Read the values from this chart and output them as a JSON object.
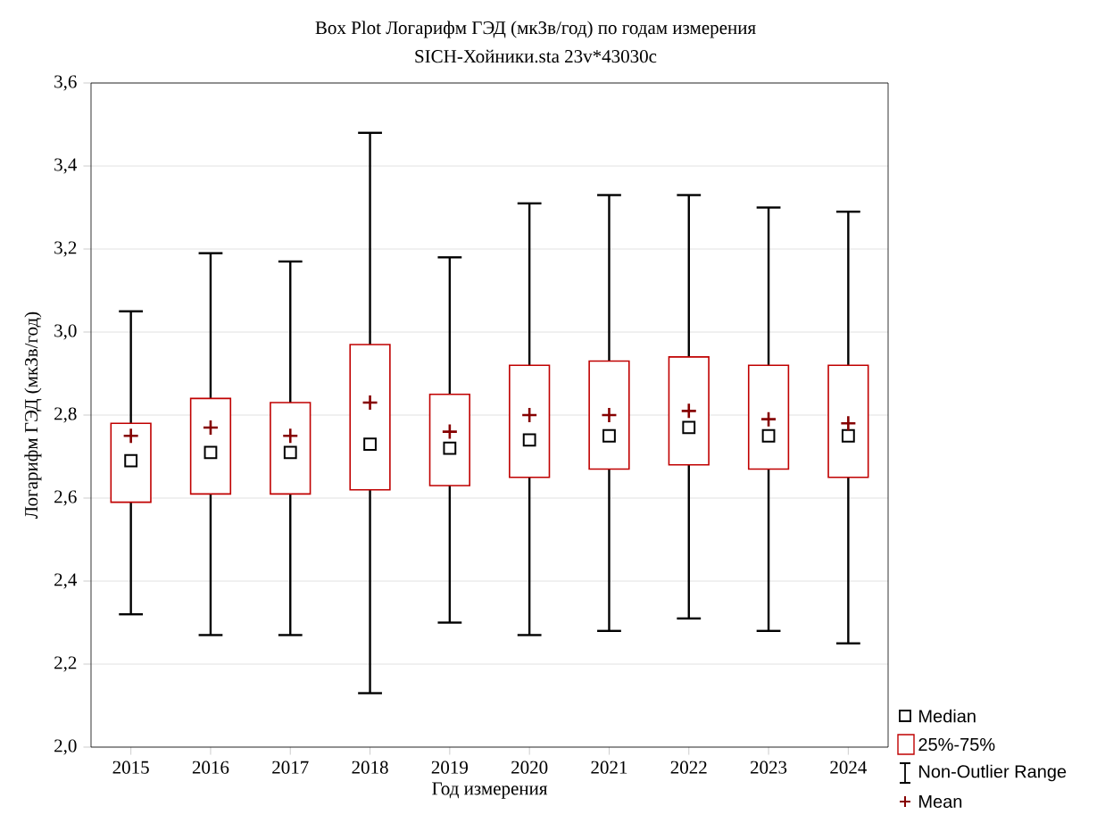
{
  "chart_data": {
    "type": "box",
    "title": "Box Plot Логарифм ГЭД (мкЗв/год) по годам измерения",
    "subtitle": "SICH-Хойники.sta 23v*43030c",
    "xlabel": "Год измерения",
    "ylabel": "Логарифм ГЭД (мкЗв/год)",
    "categories": [
      "2015",
      "2016",
      "2017",
      "2018",
      "2019",
      "2020",
      "2021",
      "2022",
      "2023",
      "2024"
    ],
    "boxes": [
      {
        "low": 2.32,
        "q1": 2.59,
        "median": 2.69,
        "q3": 2.78,
        "high": 3.05,
        "mean": 2.75
      },
      {
        "low": 2.27,
        "q1": 2.61,
        "median": 2.71,
        "q3": 2.84,
        "high": 3.19,
        "mean": 2.77
      },
      {
        "low": 2.27,
        "q1": 2.61,
        "median": 2.71,
        "q3": 2.83,
        "high": 3.17,
        "mean": 2.75
      },
      {
        "low": 2.13,
        "q1": 2.62,
        "median": 2.73,
        "q3": 2.97,
        "high": 3.48,
        "mean": 2.83
      },
      {
        "low": 2.3,
        "q1": 2.63,
        "median": 2.72,
        "q3": 2.85,
        "high": 3.18,
        "mean": 2.76
      },
      {
        "low": 2.27,
        "q1": 2.65,
        "median": 2.74,
        "q3": 2.92,
        "high": 3.31,
        "mean": 2.8
      },
      {
        "low": 2.28,
        "q1": 2.67,
        "median": 2.75,
        "q3": 2.93,
        "high": 3.33,
        "mean": 2.8
      },
      {
        "low": 2.31,
        "q1": 2.68,
        "median": 2.77,
        "q3": 2.94,
        "high": 3.33,
        "mean": 2.81
      },
      {
        "low": 2.28,
        "q1": 2.67,
        "median": 2.75,
        "q3": 2.92,
        "high": 3.3,
        "mean": 2.79
      },
      {
        "low": 2.25,
        "q1": 2.65,
        "median": 2.75,
        "q3": 2.92,
        "high": 3.29,
        "mean": 2.78
      }
    ],
    "color": "#c00000",
    "ylim": [
      2.0,
      3.6
    ],
    "yticks": [
      {
        "value": 2.0,
        "label": "2,0"
      },
      {
        "value": 2.2,
        "label": "2,2"
      },
      {
        "value": 2.4,
        "label": "2,4"
      },
      {
        "value": 2.6,
        "label": "2,6"
      },
      {
        "value": 2.8,
        "label": "2,8"
      },
      {
        "value": 3.0,
        "label": "3,0"
      },
      {
        "value": 3.2,
        "label": "3,2"
      },
      {
        "value": 3.4,
        "label": "3,4"
      },
      {
        "value": 3.6,
        "label": "3,6"
      }
    ],
    "grid": "y",
    "annotations": [
      "Median",
      "25%-75%",
      "Non-Outlier Range",
      "Mean"
    ]
  }
}
